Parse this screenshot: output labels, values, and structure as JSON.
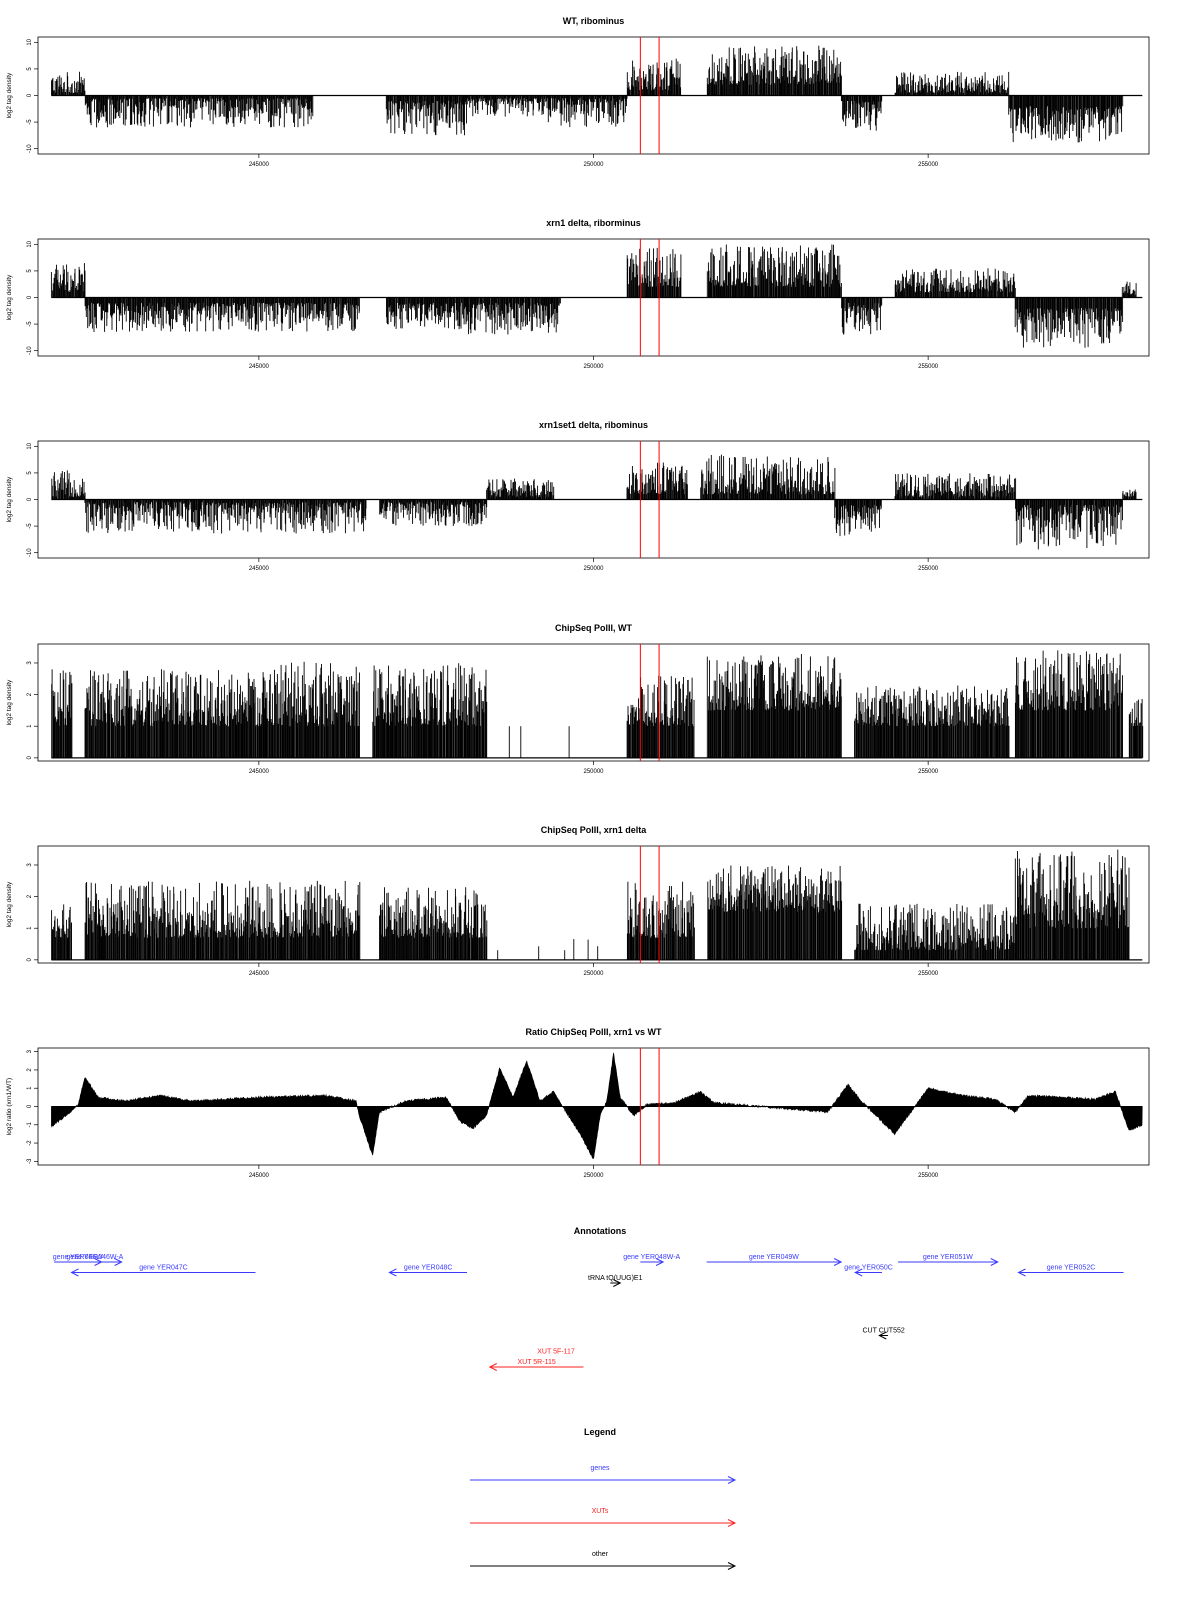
{
  "chart_data": [
    {
      "type": "bar",
      "title": "WT, ribominus",
      "xlabel": "",
      "ylabel": "log2 tag density",
      "xlim": [
        241700,
        258300
      ],
      "ylim": [
        -11,
        11
      ],
      "x_ticks": [
        245000,
        250000,
        255000
      ],
      "y_ticks": [
        -10,
        -5,
        0,
        5,
        10
      ],
      "markers_x": [
        250700,
        250980
      ],
      "segments": [
        {
          "x": [
            241900,
            242400
          ],
          "y": [
            0.5,
            4.5
          ],
          "sign": 1
        },
        {
          "x": [
            242400,
            245800
          ],
          "y": [
            -0.5,
            -6
          ],
          "sign": -1
        },
        {
          "x": [
            246900,
            248100
          ],
          "y": [
            -1,
            -7.5
          ],
          "sign": -1
        },
        {
          "x": [
            248100,
            249300
          ],
          "y": [
            -0.5,
            -4
          ],
          "sign": -1
        },
        {
          "x": [
            249300,
            250500
          ],
          "y": [
            -0.5,
            -6
          ],
          "sign": -1
        },
        {
          "x": [
            250500,
            251300
          ],
          "y": [
            1,
            7
          ],
          "sign": 1
        },
        {
          "x": [
            251700,
            253700
          ],
          "y": [
            2,
            9.5
          ],
          "sign": 1
        },
        {
          "x": [
            253700,
            254300
          ],
          "y": [
            -1,
            -7
          ],
          "sign": -1
        },
        {
          "x": [
            254500,
            256200
          ],
          "y": [
            0.5,
            4.5
          ],
          "sign": 1
        },
        {
          "x": [
            256200,
            257900
          ],
          "y": [
            -2,
            -9
          ],
          "sign": -1
        }
      ]
    },
    {
      "type": "bar",
      "title": "xrn1 delta, riborminus",
      "xlabel": "",
      "ylabel": "log2 tag density",
      "xlim": [
        241700,
        258300
      ],
      "ylim": [
        -11,
        11
      ],
      "x_ticks": [
        245000,
        250000,
        255000
      ],
      "y_ticks": [
        -10,
        -5,
        0,
        5,
        10
      ],
      "markers_x": [
        250700,
        250980
      ],
      "segments": [
        {
          "x": [
            241900,
            242400
          ],
          "y": [
            1,
            7
          ],
          "sign": 1
        },
        {
          "x": [
            242400,
            246500
          ],
          "y": [
            -1,
            -6.5
          ],
          "sign": -1
        },
        {
          "x": [
            246900,
            248100
          ],
          "y": [
            -1,
            -6
          ],
          "sign": -1
        },
        {
          "x": [
            248100,
            249500
          ],
          "y": [
            -1,
            -7
          ],
          "sign": -1
        },
        {
          "x": [
            250500,
            251300
          ],
          "y": [
            2,
            9.5
          ],
          "sign": 1
        },
        {
          "x": [
            251700,
            253700
          ],
          "y": [
            2,
            10
          ],
          "sign": 1
        },
        {
          "x": [
            253700,
            254300
          ],
          "y": [
            -1,
            -7
          ],
          "sign": -1
        },
        {
          "x": [
            254500,
            256300
          ],
          "y": [
            1,
            5.5
          ],
          "sign": 1
        },
        {
          "x": [
            256300,
            257900
          ],
          "y": [
            -2,
            -9.5
          ],
          "sign": -1
        },
        {
          "x": [
            257900,
            258100
          ],
          "y": [
            0.5,
            3
          ],
          "sign": 1
        }
      ]
    },
    {
      "type": "bar",
      "title": "xrn1set1 delta, ribominus",
      "xlabel": "",
      "ylabel": "log2 tag density",
      "xlim": [
        241700,
        258300
      ],
      "ylim": [
        -11,
        11
      ],
      "x_ticks": [
        245000,
        250000,
        255000
      ],
      "y_ticks": [
        -10,
        -5,
        0,
        5,
        10
      ],
      "markers_x": [
        250700,
        250980
      ],
      "segments": [
        {
          "x": [
            241900,
            242400
          ],
          "y": [
            0.5,
            5.5
          ],
          "sign": 1
        },
        {
          "x": [
            242400,
            246600
          ],
          "y": [
            -0.5,
            -6.5
          ],
          "sign": -1
        },
        {
          "x": [
            246800,
            248400
          ],
          "y": [
            -0.5,
            -5
          ],
          "sign": -1
        },
        {
          "x": [
            248400,
            249400
          ],
          "y": [
            0.5,
            4
          ],
          "sign": 1
        },
        {
          "x": [
            250500,
            251400
          ],
          "y": [
            1,
            7
          ],
          "sign": 1
        },
        {
          "x": [
            251600,
            253600
          ],
          "y": [
            1,
            8.5
          ],
          "sign": 1
        },
        {
          "x": [
            253600,
            254300
          ],
          "y": [
            -1,
            -7
          ],
          "sign": -1
        },
        {
          "x": [
            254500,
            256300
          ],
          "y": [
            0.5,
            5
          ],
          "sign": 1
        },
        {
          "x": [
            256300,
            257900
          ],
          "y": [
            -1,
            -9.5
          ],
          "sign": -1
        },
        {
          "x": [
            257900,
            258100
          ],
          "y": [
            0.5,
            2
          ],
          "sign": 1
        }
      ]
    },
    {
      "type": "bar",
      "title": "ChipSeq PolII, WT",
      "xlabel": "",
      "ylabel": "log2 tag density",
      "xlim": [
        241700,
        258300
      ],
      "ylim": [
        -0.1,
        3.6
      ],
      "x_ticks": [
        245000,
        250000,
        255000
      ],
      "y_ticks": [
        0.0,
        1.0,
        2.0,
        3.0
      ],
      "markers_x": [
        250700,
        250980
      ],
      "segments": [
        {
          "x": [
            241900,
            242200
          ],
          "y": [
            1,
            2.8
          ],
          "sign": 1
        },
        {
          "x": [
            242400,
            245200
          ],
          "y": [
            1,
            2.8
          ],
          "sign": 1
        },
        {
          "x": [
            245200,
            246500
          ],
          "y": [
            1,
            3.1
          ],
          "sign": 1
        },
        {
          "x": [
            246700,
            248400
          ],
          "y": [
            1,
            3
          ],
          "sign": 1
        },
        {
          "x": [
            248400,
            250300
          ],
          "y": [
            1,
            1
          ],
          "sign": 1,
          "sparse": true
        },
        {
          "x": [
            250500,
            251500
          ],
          "y": [
            1,
            2.6
          ],
          "sign": 1
        },
        {
          "x": [
            251700,
            253700
          ],
          "y": [
            1.5,
            3.3
          ],
          "sign": 1
        },
        {
          "x": [
            253900,
            256200
          ],
          "y": [
            1,
            2.3
          ],
          "sign": 1
        },
        {
          "x": [
            256300,
            257900
          ],
          "y": [
            1.5,
            3.4
          ],
          "sign": 1
        },
        {
          "x": [
            258000,
            258200
          ],
          "y": [
            1,
            2
          ],
          "sign": 1
        }
      ]
    },
    {
      "type": "bar",
      "title": "ChipSeq PolII, xrn1 delta",
      "xlabel": "",
      "ylabel": "log2 tag density",
      "xlim": [
        241700,
        258300
      ],
      "ylim": [
        -0.1,
        3.6
      ],
      "x_ticks": [
        245000,
        250000,
        255000
      ],
      "y_ticks": [
        0.0,
        1.0,
        2.0,
        3.0
      ],
      "markers_x": [
        250700,
        250980
      ],
      "segments": [
        {
          "x": [
            241900,
            242200
          ],
          "y": [
            0.7,
            1.8
          ],
          "sign": 1
        },
        {
          "x": [
            242400,
            246500
          ],
          "y": [
            0.7,
            2.5
          ],
          "sign": 1
        },
        {
          "x": [
            246800,
            248400
          ],
          "y": [
            0.7,
            2.3
          ],
          "sign": 1
        },
        {
          "x": [
            248400,
            250300
          ],
          "y": [
            0.3,
            0.7
          ],
          "sign": 1,
          "sparse": true
        },
        {
          "x": [
            250500,
            251500
          ],
          "y": [
            0.7,
            2.5
          ],
          "sign": 1
        },
        {
          "x": [
            251700,
            253700
          ],
          "y": [
            1.5,
            3
          ],
          "sign": 1
        },
        {
          "x": [
            253900,
            256300
          ],
          "y": [
            0.3,
            1.8
          ],
          "sign": 1
        },
        {
          "x": [
            256300,
            258000
          ],
          "y": [
            1,
            3.5
          ],
          "sign": 1
        }
      ]
    },
    {
      "type": "area",
      "title": "Ratio ChipSeq PolII, xrn1 vs WT",
      "xlabel": "",
      "ylabel": "log2 ratio (xrn1/WT)",
      "xlim": [
        241700,
        258300
      ],
      "ylim": [
        -3.2,
        3.2
      ],
      "x_ticks": [
        245000,
        250000,
        255000
      ],
      "y_ticks": [
        -3,
        -2,
        -1,
        0,
        1,
        2,
        3
      ],
      "markers_x": [
        250700,
        250980
      ],
      "knots": [
        [
          241900,
          -1.1
        ],
        [
          242150,
          -0.4
        ],
        [
          242300,
          0.1
        ],
        [
          242400,
          1.6
        ],
        [
          242600,
          0.5
        ],
        [
          243000,
          0.3
        ],
        [
          243500,
          0.6
        ],
        [
          244000,
          0.3
        ],
        [
          245000,
          0.5
        ],
        [
          246000,
          0.6
        ],
        [
          246450,
          0.3
        ],
        [
          246500,
          -0.5
        ],
        [
          246700,
          -2.7
        ],
        [
          246800,
          -0.3
        ],
        [
          247200,
          0.3
        ],
        [
          247800,
          0.5
        ],
        [
          248000,
          -0.8
        ],
        [
          248200,
          -1.2
        ],
        [
          248400,
          -0.5
        ],
        [
          248600,
          2.1
        ],
        [
          248800,
          0.5
        ],
        [
          249000,
          2.5
        ],
        [
          249200,
          0.3
        ],
        [
          249400,
          0.8
        ],
        [
          249800,
          -1.5
        ],
        [
          250000,
          -2.9
        ],
        [
          250100,
          -0.5
        ],
        [
          250200,
          0.3
        ],
        [
          250300,
          2.9
        ],
        [
          250400,
          0.5
        ],
        [
          250600,
          -0.5
        ],
        [
          250800,
          0.1
        ],
        [
          251200,
          0.2
        ],
        [
          251600,
          0.8
        ],
        [
          251800,
          0.2
        ],
        [
          252500,
          0
        ],
        [
          253500,
          -0.3
        ],
        [
          253800,
          1.2
        ],
        [
          254000,
          0.3
        ],
        [
          254500,
          -1.5
        ],
        [
          254700,
          -0.5
        ],
        [
          255000,
          1
        ],
        [
          255500,
          0.6
        ],
        [
          256000,
          0.4
        ],
        [
          256300,
          -0.3
        ],
        [
          256500,
          0.6
        ],
        [
          257500,
          0.4
        ],
        [
          257800,
          0.8
        ],
        [
          258000,
          -1.3
        ],
        [
          258200,
          -1
        ]
      ]
    },
    {
      "type": "table",
      "title": "Annotations",
      "xlim": [
        241700,
        258300
      ],
      "features": [
        {
          "label": "gene YER046W",
          "class": "genes",
          "x1": 241940,
          "x2": 242650,
          "row": 1,
          "dir": 1
        },
        {
          "label": "gene YER046W-A",
          "class": "genes",
          "x1": 242150,
          "x2": 242950,
          "row": 1,
          "dir": 1
        },
        {
          "label": "gene YER047C",
          "class": "genes",
          "x1": 242200,
          "x2": 244950,
          "row": 2,
          "dir": -1
        },
        {
          "label": "gene YER048C",
          "class": "genes",
          "x1": 246950,
          "x2": 248110,
          "row": 2,
          "dir": -1
        },
        {
          "label": "gene YER048W-A",
          "class": "genes",
          "x1": 250700,
          "x2": 251040,
          "row": 1,
          "dir": 1
        },
        {
          "label": "gene YER049W",
          "class": "genes",
          "x1": 251690,
          "x2": 253700,
          "row": 1,
          "dir": 1
        },
        {
          "label": "gene YER050C",
          "class": "genes",
          "x1": 253910,
          "x2": 254310,
          "row": 2,
          "dir": -1
        },
        {
          "label": "gene YER051W",
          "class": "genes",
          "x1": 254550,
          "x2": 256040,
          "row": 1,
          "dir": 1
        },
        {
          "label": "gene YER052C",
          "class": "genes",
          "x1": 256350,
          "x2": 257920,
          "row": 2,
          "dir": -1
        },
        {
          "label": "tRNA tQ(UUG)E1",
          "class": "other",
          "x1": 250250,
          "x2": 250400,
          "row": 3,
          "dir": 1
        },
        {
          "label": "CUT CUT552",
          "class": "other",
          "x1": 254270,
          "x2": 254400,
          "row": 8,
          "dir": -1
        },
        {
          "label": "XUT 5F-117",
          "class": "XUTs",
          "x1": 249380,
          "x2": 249390,
          "row": 10,
          "dir": 1
        },
        {
          "label": "XUT 5R-115",
          "class": "XUTs",
          "x1": 248450,
          "x2": 249850,
          "row": 11,
          "dir": -1
        }
      ]
    },
    {
      "type": "table",
      "title": "Legend",
      "entries": [
        {
          "label": "genes",
          "color": "#3a3aff"
        },
        {
          "label": "XUTs",
          "color": "#ff2020"
        },
        {
          "label": "other",
          "color": "#000000"
        }
      ]
    }
  ],
  "colors": {
    "signal": "#000000",
    "marker": "#ff0000",
    "genes": "#3a3aff",
    "XUTs": "#ff2020",
    "other": "#000000"
  }
}
